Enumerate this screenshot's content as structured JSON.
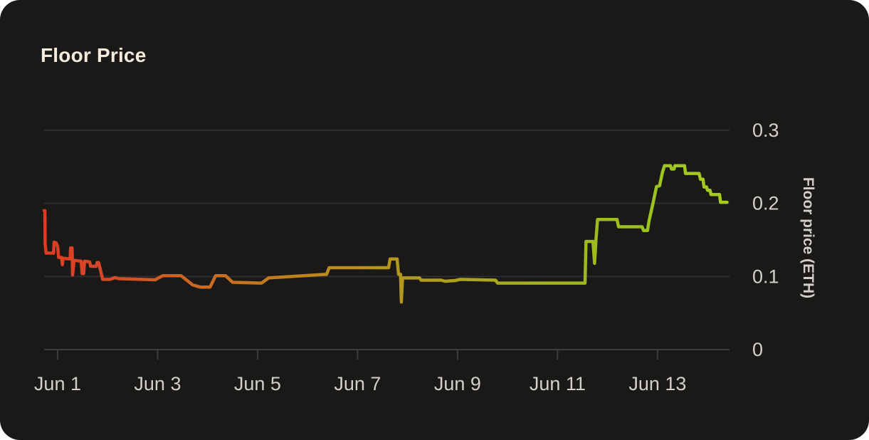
{
  "card": {
    "title": "Floor Price"
  },
  "colors": {
    "card_background": "#1a1917",
    "outside_background": "#ffffff",
    "gridline": "#2c2c32",
    "axis_line": "#3c3c42",
    "tick_label": "#d3d0c9",
    "title_text": "#f5ebdc",
    "y_axis_title_text": "#d2cfc8",
    "line_start_red": "#dd3b24",
    "line_mid_yellow": "#b4951d",
    "line_end_green": "#a2ca1e"
  },
  "chart_data": {
    "type": "line",
    "title": "Floor Price",
    "xlabel": "",
    "ylabel": "Floor price (ETH)",
    "x_unit": "day of June",
    "xlim": [
      0.73,
      14.44
    ],
    "ylim": [
      0,
      0.3
    ],
    "grid": "horizontal",
    "legend": "none",
    "y_axis_side": "right",
    "x_ticks": [
      {
        "value": 1,
        "label": "Jun 1"
      },
      {
        "value": 3,
        "label": "Jun 3"
      },
      {
        "value": 5,
        "label": "Jun 5"
      },
      {
        "value": 7,
        "label": "Jun 7"
      },
      {
        "value": 9,
        "label": "Jun 9"
      },
      {
        "value": 11,
        "label": "Jun 11"
      },
      {
        "value": 13,
        "label": "Jun 13"
      }
    ],
    "y_ticks": [
      {
        "value": 0,
        "label": "0"
      },
      {
        "value": 0.1,
        "label": "0.1"
      },
      {
        "value": 0.2,
        "label": "0.2"
      },
      {
        "value": 0.3,
        "label": "0.3"
      }
    ],
    "line_gradient": [
      {
        "offset": 0,
        "color": "#dd3b24"
      },
      {
        "offset": 0.08,
        "color": "#d64726"
      },
      {
        "offset": 0.2,
        "color": "#cc6322"
      },
      {
        "offset": 0.35,
        "color": "#c07f1f"
      },
      {
        "offset": 0.5,
        "color": "#b4951d"
      },
      {
        "offset": 0.62,
        "color": "#aba41c"
      },
      {
        "offset": 0.75,
        "color": "#a0b51c"
      },
      {
        "offset": 0.88,
        "color": "#9bc31c"
      },
      {
        "offset": 1,
        "color": "#a5cd20"
      }
    ],
    "series": [
      {
        "name": "Floor price (ETH)",
        "points": [
          [
            0.73,
            0.19
          ],
          [
            0.745,
            0.19
          ],
          [
            0.75,
            0.145
          ],
          [
            0.77,
            0.132
          ],
          [
            0.92,
            0.132
          ],
          [
            0.93,
            0.147
          ],
          [
            0.97,
            0.146
          ],
          [
            1.0,
            0.141
          ],
          [
            1.02,
            0.126
          ],
          [
            1.08,
            0.126
          ],
          [
            1.095,
            0.116
          ],
          [
            1.11,
            0.125
          ],
          [
            1.25,
            0.124
          ],
          [
            1.26,
            0.139
          ],
          [
            1.29,
            0.139
          ],
          [
            1.3,
            0.102
          ],
          [
            1.33,
            0.122
          ],
          [
            1.47,
            0.121
          ],
          [
            1.49,
            0.104
          ],
          [
            1.52,
            0.104
          ],
          [
            1.54,
            0.121
          ],
          [
            1.64,
            0.12
          ],
          [
            1.66,
            0.114
          ],
          [
            1.77,
            0.114
          ],
          [
            1.79,
            0.119
          ],
          [
            1.82,
            0.119
          ],
          [
            1.87,
            0.105
          ],
          [
            1.9,
            0.096
          ],
          [
            2.05,
            0.096
          ],
          [
            2.15,
            0.0985
          ],
          [
            2.22,
            0.097
          ],
          [
            2.95,
            0.0955
          ],
          [
            3.1,
            0.101
          ],
          [
            3.47,
            0.101
          ],
          [
            3.7,
            0.0885
          ],
          [
            3.85,
            0.0855
          ],
          [
            4.05,
            0.0855
          ],
          [
            4.16,
            0.101
          ],
          [
            4.36,
            0.101
          ],
          [
            4.5,
            0.092
          ],
          [
            5.08,
            0.091
          ],
          [
            5.22,
            0.098
          ],
          [
            6.38,
            0.103
          ],
          [
            6.43,
            0.112
          ],
          [
            6.57,
            0.112
          ],
          [
            7.62,
            0.112
          ],
          [
            7.65,
            0.124
          ],
          [
            7.79,
            0.124
          ],
          [
            7.82,
            0.103
          ],
          [
            7.86,
            0.103
          ],
          [
            7.875,
            0.065
          ],
          [
            7.9,
            0.098
          ],
          [
            8.24,
            0.098
          ],
          [
            8.27,
            0.095
          ],
          [
            8.67,
            0.095
          ],
          [
            8.75,
            0.0935
          ],
          [
            8.95,
            0.0945
          ],
          [
            9.05,
            0.096
          ],
          [
            9.76,
            0.095
          ],
          [
            9.8,
            0.091
          ],
          [
            11.55,
            0.091
          ],
          [
            11.57,
            0.148
          ],
          [
            11.71,
            0.148
          ],
          [
            11.74,
            0.118
          ],
          [
            11.77,
            0.152
          ],
          [
            11.8,
            0.178
          ],
          [
            12.19,
            0.178
          ],
          [
            12.22,
            0.168
          ],
          [
            12.69,
            0.168
          ],
          [
            12.72,
            0.163
          ],
          [
            12.8,
            0.163
          ],
          [
            12.83,
            0.176
          ],
          [
            12.9,
            0.197
          ],
          [
            12.98,
            0.223
          ],
          [
            13.04,
            0.224
          ],
          [
            13.1,
            0.243
          ],
          [
            13.14,
            0.2515
          ],
          [
            13.26,
            0.2515
          ],
          [
            13.28,
            0.247
          ],
          [
            13.33,
            0.247
          ],
          [
            13.35,
            0.2515
          ],
          [
            13.54,
            0.2515
          ],
          [
            13.56,
            0.241
          ],
          [
            13.83,
            0.241
          ],
          [
            13.86,
            0.233
          ],
          [
            13.91,
            0.233
          ],
          [
            13.93,
            0.2225
          ],
          [
            13.98,
            0.2225
          ],
          [
            14.0,
            0.218
          ],
          [
            14.05,
            0.218
          ],
          [
            14.07,
            0.212
          ],
          [
            14.24,
            0.212
          ],
          [
            14.26,
            0.2015
          ],
          [
            14.39,
            0.2015
          ]
        ]
      }
    ]
  }
}
